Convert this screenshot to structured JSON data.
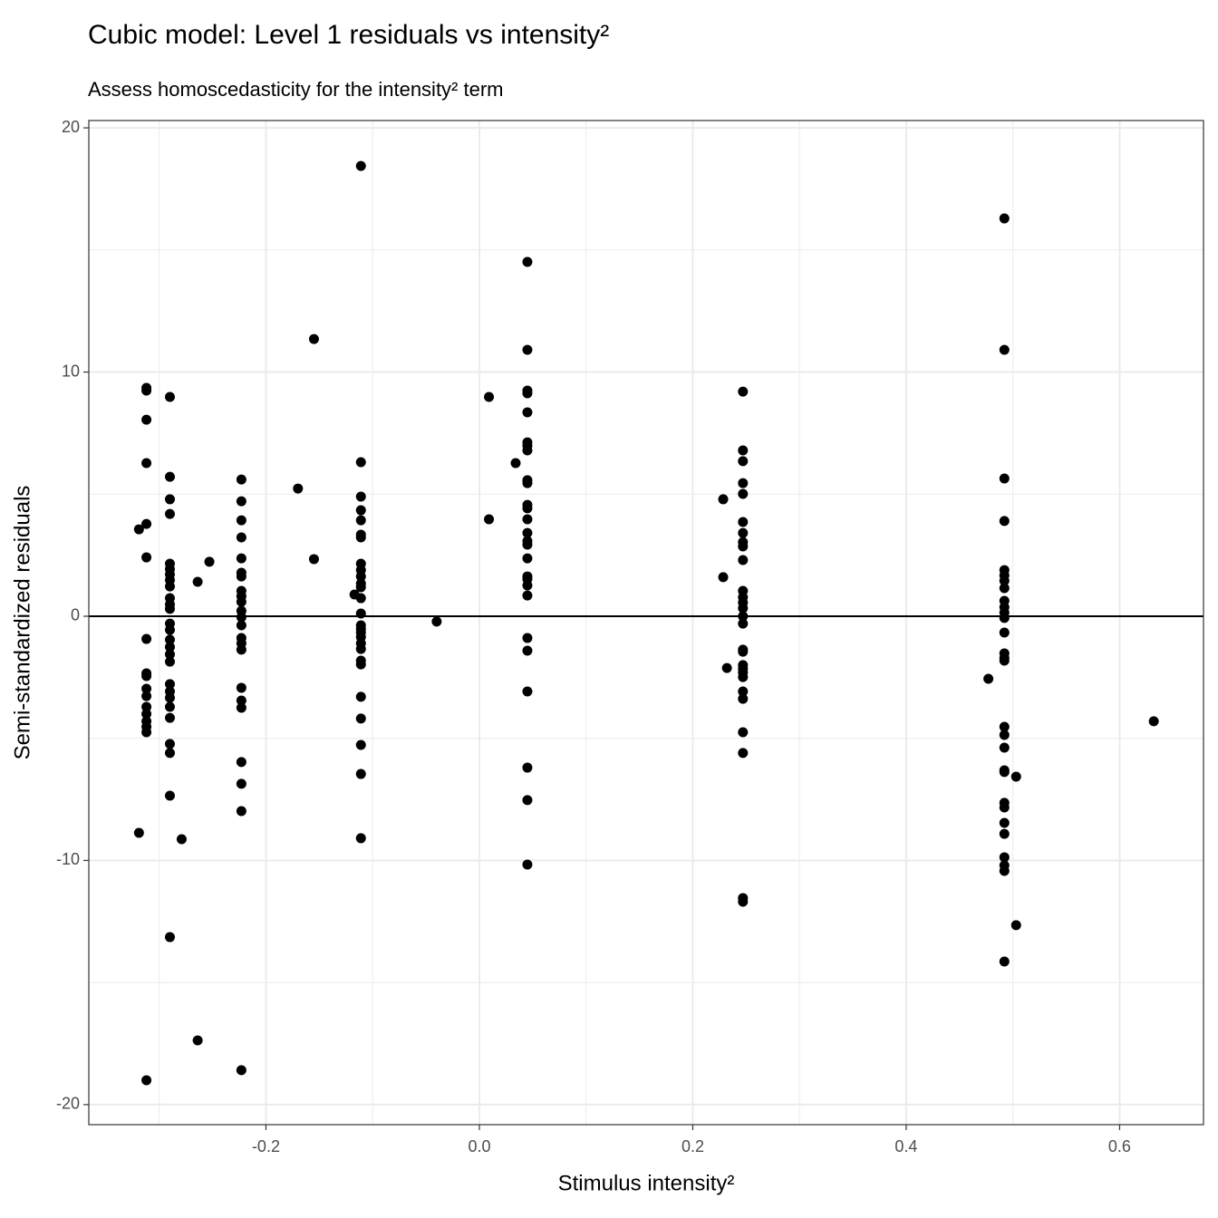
{
  "chart_data": {
    "type": "scatter",
    "title": "Cubic model: Level 1 residuals vs intensity²",
    "subtitle": "Assess homoscedasticity for the intensity² term",
    "x_label": "Stimulus intensity²",
    "y_label": "Semi-standardized residuals",
    "xlim": [
      -0.366,
      0.6786
    ],
    "ylim": [
      -20.82,
      20.3
    ],
    "xticks": [
      -0.2,
      {
        "value": 0,
        "label": "0.0"
      },
      0.2,
      0.4,
      0.6
    ],
    "yticks": [
      -20,
      -10,
      0,
      10,
      20
    ],
    "x_minor_ticks": [
      -0.3,
      -0.1,
      0.1,
      0.3,
      0.5
    ],
    "y_minor_ticks": [
      -15,
      -5,
      5,
      15
    ],
    "grid": true,
    "hline": 0,
    "color": "#000000",
    "x": [
      -0.312,
      -0.312,
      -0.312,
      -0.312,
      -0.312,
      -0.312,
      -0.312,
      -0.312,
      -0.312,
      -0.312,
      -0.312,
      -0.312,
      -0.312,
      -0.312,
      -0.312,
      -0.312,
      -0.312,
      -0.319,
      -0.319,
      -0.29,
      -0.29,
      -0.29,
      -0.29,
      -0.29,
      -0.29,
      -0.29,
      -0.29,
      -0.29,
      -0.29,
      -0.29,
      -0.29,
      -0.29,
      -0.29,
      -0.29,
      -0.29,
      -0.29,
      -0.29,
      -0.29,
      -0.29,
      -0.29,
      -0.29,
      -0.29,
      -0.29,
      -0.29,
      -0.29,
      -0.29,
      -0.279,
      -0.264,
      -0.264,
      -0.253,
      -0.223,
      -0.223,
      -0.223,
      -0.223,
      -0.223,
      -0.223,
      -0.223,
      -0.223,
      -0.223,
      -0.223,
      -0.223,
      -0.223,
      -0.223,
      -0.223,
      -0.223,
      -0.223,
      -0.223,
      -0.223,
      -0.223,
      -0.223,
      -0.223,
      -0.223,
      -0.223,
      -0.17,
      -0.155,
      -0.155,
      -0.117,
      -0.111,
      -0.111,
      -0.111,
      -0.111,
      -0.111,
      -0.111,
      -0.111,
      -0.111,
      -0.111,
      -0.111,
      -0.111,
      -0.111,
      -0.111,
      -0.111,
      -0.111,
      -0.111,
      -0.111,
      -0.111,
      -0.111,
      -0.111,
      -0.111,
      -0.111,
      -0.111,
      -0.111,
      -0.111,
      -0.111,
      -0.111,
      -0.04,
      0.009,
      0.009,
      0.034,
      0.045,
      0.045,
      0.045,
      0.045,
      0.045,
      0.045,
      0.045,
      0.045,
      0.045,
      0.045,
      0.045,
      0.045,
      0.045,
      0.045,
      0.045,
      0.045,
      0.045,
      0.045,
      0.045,
      0.045,
      0.045,
      0.045,
      0.045,
      0.045,
      0.045,
      0.045,
      0.045,
      0.2285,
      0.2285,
      0.232,
      0.247,
      0.247,
      0.247,
      0.247,
      0.247,
      0.247,
      0.247,
      0.247,
      0.247,
      0.247,
      0.247,
      0.247,
      0.247,
      0.247,
      0.247,
      0.247,
      0.247,
      0.247,
      0.247,
      0.247,
      0.247,
      0.247,
      0.247,
      0.247,
      0.247,
      0.247,
      0.247,
      0.247,
      0.477,
      0.492,
      0.492,
      0.492,
      0.492,
      0.492,
      0.492,
      0.492,
      0.492,
      0.492,
      0.492,
      0.492,
      0.492,
      0.492,
      0.492,
      0.492,
      0.492,
      0.492,
      0.492,
      0.492,
      0.492,
      0.492,
      0.492,
      0.492,
      0.492,
      0.492,
      0.492,
      0.492,
      0.492,
      0.492,
      0.503,
      0.503,
      0.632
    ],
    "values": [
      9.35,
      9.24,
      8.05,
      6.27,
      3.78,
      2.41,
      -0.93,
      -2.34,
      -2.45,
      -2.97,
      -3.27,
      -3.71,
      -4.0,
      -4.3,
      -4.53,
      -4.75,
      -19.0,
      3.56,
      -8.87,
      8.98,
      5.71,
      4.79,
      4.19,
      2.15,
      1.93,
      1.71,
      1.48,
      1.22,
      0.74,
      0.48,
      0.3,
      -0.3,
      -0.56,
      -0.96,
      -1.26,
      -1.56,
      -1.86,
      -2.78,
      -3.08,
      -3.34,
      -3.71,
      -4.16,
      -5.23,
      -5.6,
      -7.35,
      -13.14,
      -9.13,
      1.41,
      -17.37,
      2.23,
      5.6,
      4.71,
      3.93,
      3.23,
      2.37,
      1.78,
      1.63,
      1.04,
      0.82,
      0.59,
      0.22,
      -0.04,
      -0.37,
      -0.89,
      -1.11,
      -1.37,
      -2.93,
      -3.45,
      -3.75,
      -5.97,
      -6.86,
      -7.98,
      -18.59,
      5.23,
      11.35,
      2.34,
      0.89,
      18.44,
      6.31,
      4.9,
      4.34,
      3.93,
      3.34,
      3.23,
      2.15,
      1.89,
      1.63,
      1.34,
      1.19,
      0.74,
      0.11,
      -0.37,
      -0.52,
      -0.67,
      -0.85,
      -1.11,
      -1.34,
      -1.82,
      -1.97,
      -3.3,
      -4.19,
      -5.27,
      -6.46,
      -9.09,
      -0.22,
      8.98,
      3.97,
      6.27,
      14.51,
      10.91,
      9.24,
      9.13,
      8.35,
      7.12,
      6.98,
      6.79,
      5.57,
      5.45,
      4.56,
      4.42,
      3.97,
      3.41,
      3.08,
      2.93,
      2.37,
      1.63,
      1.52,
      1.26,
      0.85,
      -0.89,
      -1.41,
      -3.08,
      -6.2,
      -7.53,
      -10.17,
      4.79,
      1.6,
      -2.12,
      9.2,
      6.79,
      6.35,
      5.45,
      5.01,
      3.86,
      3.41,
      3.04,
      2.86,
      2.3,
      1.04,
      0.78,
      0.56,
      0.33,
      0,
      -0.3,
      -1.37,
      -1.45,
      -2.0,
      -2.15,
      -2.3,
      -2.49,
      -3.08,
      -3.38,
      -4.75,
      -5.6,
      -11.54,
      -11.69,
      -2.56,
      16.29,
      10.91,
      5.64,
      3.9,
      1.89,
      1.67,
      1.45,
      1.15,
      0.63,
      0.37,
      0.15,
      -0.07,
      -0.67,
      -1.52,
      -1.71,
      -1.82,
      -4.53,
      -4.86,
      -5.38,
      -6.31,
      -6.38,
      -7.64,
      -7.83,
      -8.46,
      -8.91,
      -9.87,
      -10.2,
      -10.43,
      -14.14,
      -6.57,
      -12.65,
      -4.3
    ]
  }
}
